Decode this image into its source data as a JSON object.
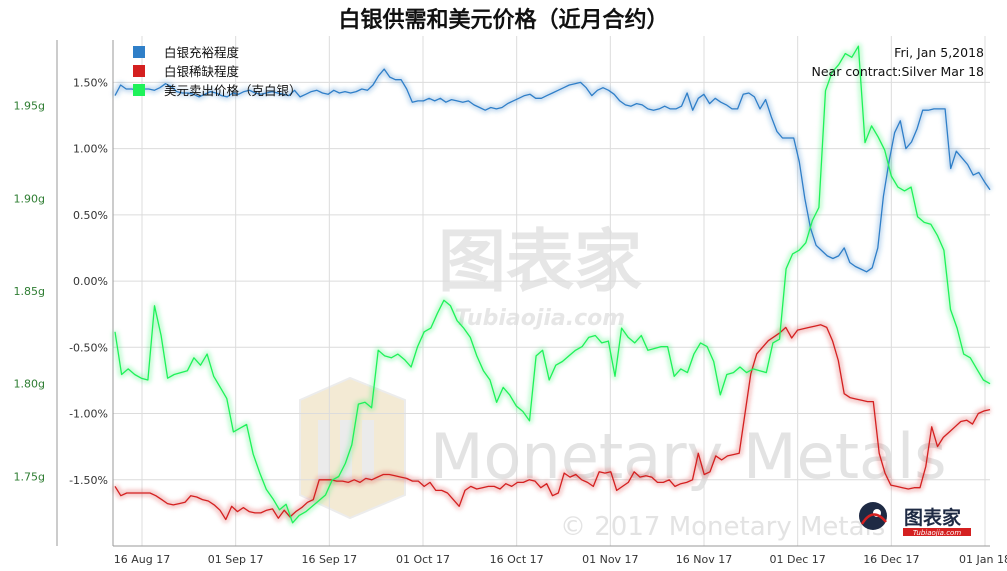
{
  "chart_data": {
    "type": "line",
    "title": "白银供需和美元价格（近月合约）",
    "info": {
      "date": "Fri, Jan 5,2018",
      "contract": "Near contract:Silver Mar 18"
    },
    "x_labels": [
      "16 Aug 17",
      "01 Sep 17",
      "16 Sep 17",
      "01 Oct 17",
      "16 Oct 17",
      "01 Nov 17",
      "16 Nov 17",
      "01 Dec 17",
      "16 Dec 17",
      "01 Jan 18"
    ],
    "right_axis": {
      "ticks": [
        "1.50%",
        "1.00%",
        "0.50%",
        "0.00%",
        "-0.50%",
        "-1.00%",
        "-1.50%"
      ],
      "ylim": [
        -2.0,
        1.85
      ]
    },
    "left_axis": {
      "ticks": [
        "1.95g",
        "1.90g",
        "1.85g",
        "1.80g",
        "1.75g"
      ],
      "ylim": [
        1.7125,
        1.9875
      ]
    },
    "grid": true,
    "legend_position": "top-left",
    "series": [
      {
        "name": "白银充裕程度",
        "axis": "right",
        "color": "#2f7fc8",
        "values": [
          1.4,
          1.48,
          1.45,
          1.45,
          1.44,
          1.45,
          1.45,
          1.44,
          1.46,
          1.49,
          1.47,
          1.43,
          1.42,
          1.42,
          1.41,
          1.39,
          1.41,
          1.43,
          1.42,
          1.4,
          1.39,
          1.42,
          1.41,
          1.43,
          1.44,
          1.42,
          1.41,
          1.42,
          1.43,
          1.42,
          1.41,
          1.4,
          1.44,
          1.39,
          1.41,
          1.43,
          1.44,
          1.42,
          1.41,
          1.44,
          1.42,
          1.43,
          1.42,
          1.43,
          1.45,
          1.44,
          1.48,
          1.55,
          1.6,
          1.54,
          1.52,
          1.52,
          1.45,
          1.35,
          1.36,
          1.36,
          1.38,
          1.36,
          1.38,
          1.35,
          1.37,
          1.36,
          1.35,
          1.36,
          1.33,
          1.31,
          1.29,
          1.31,
          1.3,
          1.31,
          1.34,
          1.36,
          1.38,
          1.4,
          1.41,
          1.38,
          1.38,
          1.4,
          1.42,
          1.44,
          1.46,
          1.48,
          1.49,
          1.5,
          1.46,
          1.4,
          1.44,
          1.46,
          1.44,
          1.41,
          1.36,
          1.33,
          1.32,
          1.34,
          1.33,
          1.3,
          1.29,
          1.3,
          1.32,
          1.3,
          1.3,
          1.32,
          1.42,
          1.29,
          1.38,
          1.41,
          1.34,
          1.38,
          1.35,
          1.33,
          1.3,
          1.3,
          1.41,
          1.42,
          1.39,
          1.3,
          1.37,
          1.24,
          1.13,
          1.08,
          1.08,
          1.08,
          0.9,
          0.62,
          0.4,
          0.27,
          0.23,
          0.19,
          0.17,
          0.19,
          0.25,
          0.14,
          0.11,
          0.09,
          0.07,
          0.1,
          0.25,
          0.64,
          0.9,
          1.12,
          1.21,
          1.0,
          1.05,
          1.15,
          1.29,
          1.29,
          1.3,
          1.3,
          1.3,
          0.85,
          0.98,
          0.93,
          0.88,
          0.8,
          0.82,
          0.75,
          0.69
        ]
      },
      {
        "name": "白银稀缺程度",
        "axis": "right",
        "color": "#d42020",
        "values": [
          -1.55,
          -1.62,
          -1.6,
          -1.6,
          -1.6,
          -1.6,
          -1.6,
          -1.62,
          -1.65,
          -1.68,
          -1.69,
          -1.68,
          -1.67,
          -1.62,
          -1.63,
          -1.65,
          -1.66,
          -1.69,
          -1.73,
          -1.8,
          -1.7,
          -1.74,
          -1.71,
          -1.74,
          -1.75,
          -1.75,
          -1.73,
          -1.72,
          -1.79,
          -1.73,
          -1.78,
          -1.74,
          -1.71,
          -1.67,
          -1.65,
          -1.5,
          -1.5,
          -1.5,
          -1.51,
          -1.51,
          -1.52,
          -1.5,
          -1.52,
          -1.49,
          -1.5,
          -1.48,
          -1.46,
          -1.46,
          -1.47,
          -1.48,
          -1.49,
          -1.51,
          -1.51,
          -1.55,
          -1.52,
          -1.58,
          -1.58,
          -1.6,
          -1.65,
          -1.7,
          -1.58,
          -1.55,
          -1.57,
          -1.56,
          -1.55,
          -1.55,
          -1.57,
          -1.53,
          -1.55,
          -1.52,
          -1.52,
          -1.5,
          -1.51,
          -1.56,
          -1.53,
          -1.62,
          -1.6,
          -1.45,
          -1.48,
          -1.46,
          -1.5,
          -1.52,
          -1.55,
          -1.44,
          -1.45,
          -1.44,
          -1.58,
          -1.55,
          -1.52,
          -1.44,
          -1.48,
          -1.47,
          -1.48,
          -1.52,
          -1.52,
          -1.5,
          -1.55,
          -1.53,
          -1.52,
          -1.5,
          -1.3,
          -1.46,
          -1.44,
          -1.32,
          -1.35,
          -1.32,
          -1.31,
          -1.3,
          -1.0,
          -0.7,
          -0.55,
          -0.5,
          -0.45,
          -0.42,
          -0.39,
          -0.35,
          -0.43,
          -0.37,
          -0.36,
          -0.35,
          -0.34,
          -0.33,
          -0.35,
          -0.45,
          -0.6,
          -0.85,
          -0.88,
          -0.89,
          -0.9,
          -0.91,
          -0.91,
          -1.3,
          -1.45,
          -1.54,
          -1.55,
          -1.56,
          -1.57,
          -1.56,
          -1.56,
          -1.4,
          -1.1,
          -1.25,
          -1.18,
          -1.14,
          -1.1,
          -1.06,
          -1.05,
          -1.08,
          -1.0,
          -0.98,
          -0.97
        ]
      },
      {
        "name": "美元卖出价格（克白银）",
        "axis": "left",
        "color": "#1ef25a",
        "values": [
          1.828,
          1.805,
          1.808,
          1.805,
          1.803,
          1.802,
          1.842,
          1.826,
          1.803,
          1.805,
          1.806,
          1.807,
          1.814,
          1.81,
          1.816,
          1.804,
          1.798,
          1.792,
          1.774,
          1.776,
          1.778,
          1.762,
          1.752,
          1.743,
          1.738,
          1.732,
          1.735,
          1.725,
          1.729,
          1.731,
          1.734,
          1.737,
          1.74,
          1.748,
          1.75,
          1.757,
          1.767,
          1.789,
          1.79,
          1.787,
          1.818,
          1.815,
          1.814,
          1.816,
          1.813,
          1.809,
          1.82,
          1.828,
          1.83,
          1.838,
          1.845,
          1.842,
          1.834,
          1.83,
          1.825,
          1.815,
          1.807,
          1.802,
          1.79,
          1.798,
          1.794,
          1.788,
          1.785,
          1.78,
          1.815,
          1.818,
          1.802,
          1.81,
          1.812,
          1.815,
          1.818,
          1.82,
          1.825,
          1.826,
          1.822,
          1.823,
          1.804,
          1.83,
          1.825,
          1.822,
          1.826,
          1.818,
          1.819,
          1.82,
          1.82,
          1.804,
          1.808,
          1.806,
          1.816,
          1.822,
          1.82,
          1.812,
          1.794,
          1.805,
          1.806,
          1.809,
          1.806,
          1.808,
          1.807,
          1.806,
          1.822,
          1.824,
          1.862,
          1.87,
          1.872,
          1.876,
          1.888,
          1.895,
          1.958,
          1.968,
          1.972,
          1.978,
          1.976,
          1.982,
          1.93,
          1.939,
          1.933,
          1.926,
          1.912,
          1.906,
          1.904,
          1.906,
          1.89,
          1.887,
          1.886,
          1.88,
          1.872,
          1.84,
          1.83,
          1.816,
          1.814,
          1.808,
          1.802,
          1.8
        ]
      }
    ]
  },
  "watermarks": {
    "brand": "Monetary Metals",
    "copyright": "© 2017 Monetary Metals",
    "tubiaojia": "图表家",
    "tubiaojia_url": "Tubiaojia.com"
  }
}
